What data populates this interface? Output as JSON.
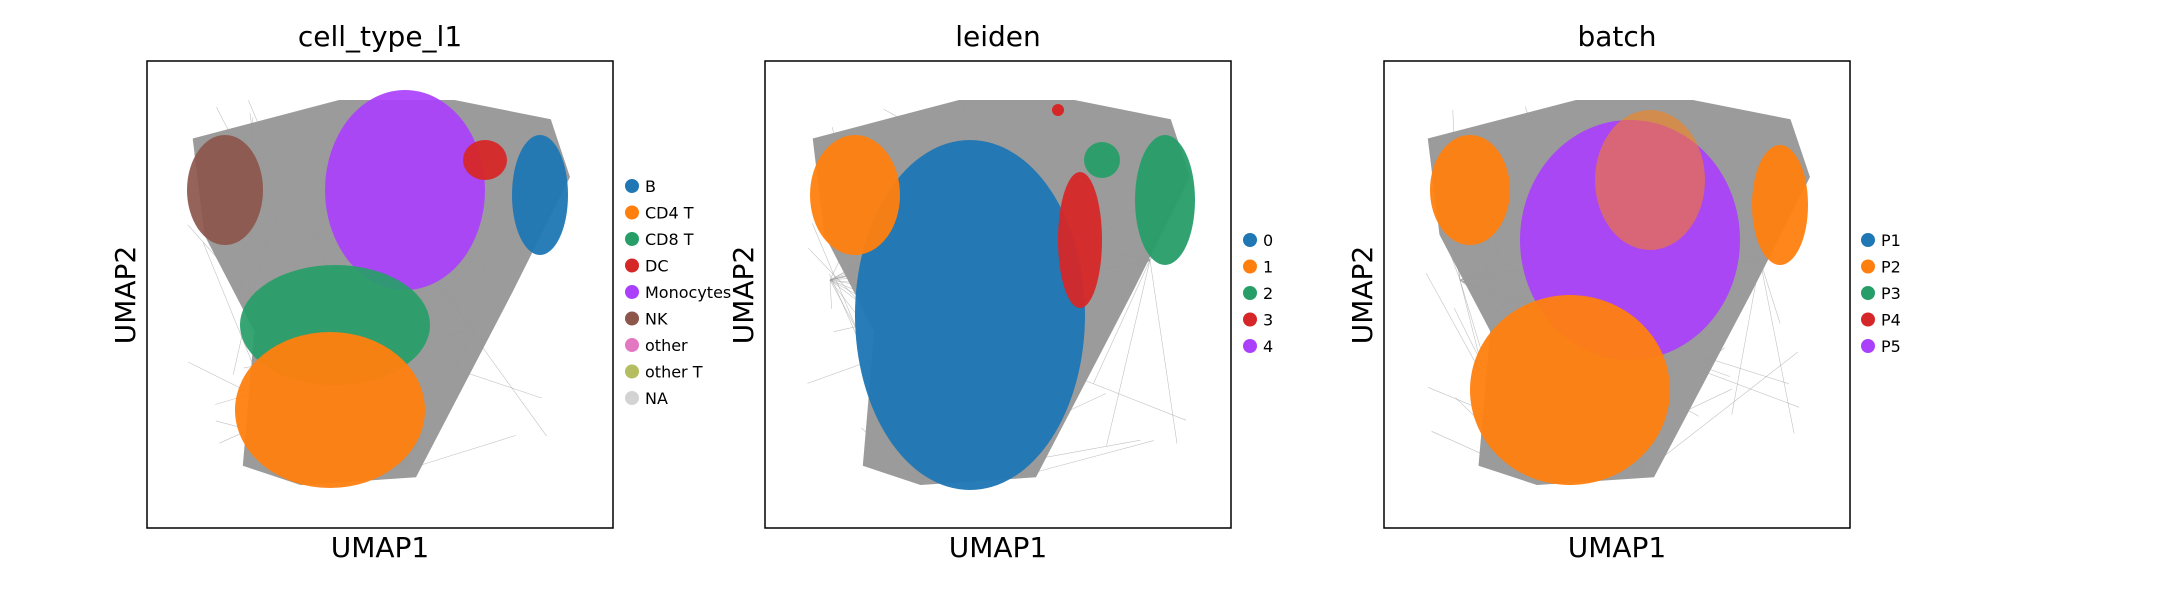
{
  "chart_data": [
    {
      "type": "scatter",
      "subtype": "umap-embedding-with-neighbor-graph",
      "title": "cell_type_l1",
      "xlabel": "UMAP1",
      "ylabel": "UMAP2",
      "ticks": "none",
      "legend_position": "right",
      "edge_color": "#7f7f7f",
      "series": [
        {
          "name": "B",
          "color": "#1f77b4"
        },
        {
          "name": "CD4 T",
          "color": "#ff7f0e"
        },
        {
          "name": "CD8 T",
          "color": "#279e68"
        },
        {
          "name": "DC",
          "color": "#d62728"
        },
        {
          "name": "Monocytes",
          "color": "#aa40fc"
        },
        {
          "name": "NK",
          "color": "#8c564b"
        },
        {
          "name": "other",
          "color": "#e377c2"
        },
        {
          "name": "other T",
          "color": "#b5bd61"
        },
        {
          "name": "NA",
          "color": "#d3d3d3"
        }
      ]
    },
    {
      "type": "scatter",
      "subtype": "umap-embedding-with-neighbor-graph",
      "title": "leiden",
      "xlabel": "UMAP1",
      "ylabel": "UMAP2",
      "ticks": "none",
      "legend_position": "right",
      "edge_color": "#7f7f7f",
      "series": [
        {
          "name": "0",
          "color": "#1f77b4"
        },
        {
          "name": "1",
          "color": "#ff7f0e"
        },
        {
          "name": "2",
          "color": "#279e68"
        },
        {
          "name": "3",
          "color": "#d62728"
        },
        {
          "name": "4",
          "color": "#aa40fc"
        }
      ]
    },
    {
      "type": "scatter",
      "subtype": "umap-embedding-with-neighbor-graph",
      "title": "batch",
      "xlabel": "UMAP1",
      "ylabel": "UMAP2",
      "ticks": "none",
      "legend_position": "right",
      "edge_color": "#7f7f7f",
      "series": [
        {
          "name": "P1",
          "color": "#1f77b4"
        },
        {
          "name": "P2",
          "color": "#ff7f0e"
        },
        {
          "name": "P3",
          "color": "#279e68"
        },
        {
          "name": "P4",
          "color": "#d62728"
        },
        {
          "name": "P5",
          "color": "#aa40fc"
        }
      ]
    }
  ]
}
